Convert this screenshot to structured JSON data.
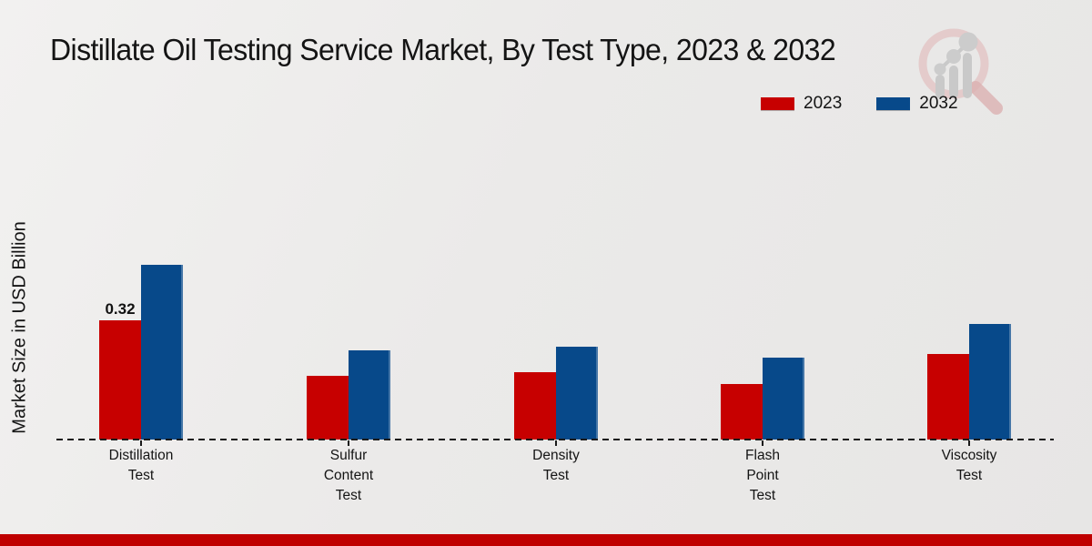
{
  "header": {
    "title": "Distillate Oil Testing Service Market, By Test Type, 2023 & 2032"
  },
  "chart_data": {
    "type": "bar",
    "title": "Distillate Oil Testing Service Market, By Test Type, 2023 & 2032",
    "ylabel": "Market Size in USD Billion",
    "xlabel": "",
    "ylim": [
      0,
      0.5
    ],
    "grid": false,
    "legend_position": "top-right",
    "categories": [
      [
        "Distillation",
        "Test"
      ],
      [
        "Sulfur",
        "Content",
        "Test"
      ],
      [
        "Density",
        "Test"
      ],
      [
        "Flash",
        "Point",
        "Test"
      ],
      [
        "Viscosity",
        "Test"
      ]
    ],
    "series": [
      {
        "name": "2023",
        "color": "#c70000",
        "values": [
          0.32,
          0.17,
          0.18,
          0.15,
          0.23
        ]
      },
      {
        "name": "2032",
        "color": "#07498a",
        "values": [
          0.47,
          0.24,
          0.25,
          0.22,
          0.31
        ]
      }
    ],
    "bar_labels": [
      {
        "series": 0,
        "category": 0,
        "text": "0.32"
      }
    ]
  },
  "footer": {
    "bar_color": "#bf0000"
  }
}
